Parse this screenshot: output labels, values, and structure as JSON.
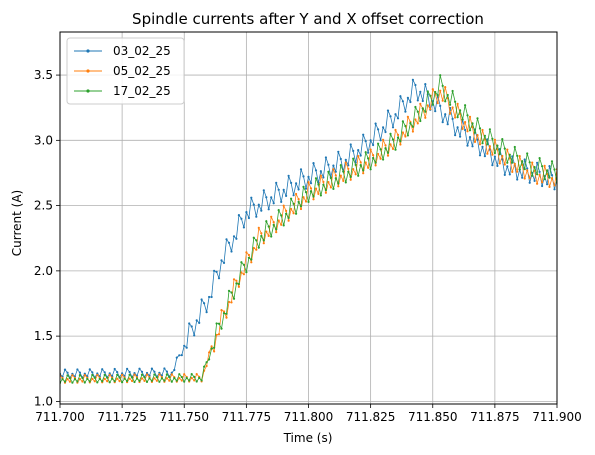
{
  "chart_data": {
    "type": "line",
    "title": "Spindle currents after Y and X offset correction",
    "xlabel": "Time (s)",
    "ylabel": "Current (A)",
    "xlim": [
      711.7,
      711.9
    ],
    "ylim": [
      0.98,
      3.83
    ],
    "x_ticks": [
      "711.700",
      "711.725",
      "711.750",
      "711.775",
      "711.800",
      "711.825",
      "711.850",
      "711.875",
      "711.900"
    ],
    "y_ticks": [
      "1.0",
      "1.5",
      "2.0",
      "2.5",
      "3.0",
      "3.5"
    ],
    "grid": true,
    "legend": "top-left",
    "sample_interval": 0.001,
    "series": [
      {
        "name": "03_02_25",
        "color": "#1f77b4",
        "knots": [
          [
            711.7,
            1.21
          ],
          [
            711.745,
            1.22
          ],
          [
            711.753,
            1.55
          ],
          [
            711.76,
            1.8
          ],
          [
            711.765,
            2.08
          ],
          [
            711.775,
            2.45
          ],
          [
            711.79,
            2.62
          ],
          [
            711.8,
            2.72
          ],
          [
            711.815,
            2.85
          ],
          [
            711.825,
            3.0
          ],
          [
            711.835,
            3.2
          ],
          [
            711.843,
            3.4
          ],
          [
            711.85,
            3.3
          ],
          [
            711.86,
            3.1
          ],
          [
            711.87,
            2.95
          ],
          [
            711.88,
            2.8
          ],
          [
            711.9,
            2.7
          ]
        ],
        "ripple": 0.1
      },
      {
        "name": "05_02_25",
        "color": "#ff7f0e",
        "knots": [
          [
            711.7,
            1.17
          ],
          [
            711.757,
            1.18
          ],
          [
            711.765,
            1.62
          ],
          [
            711.772,
            1.95
          ],
          [
            711.78,
            2.25
          ],
          [
            711.79,
            2.42
          ],
          [
            711.8,
            2.6
          ],
          [
            711.815,
            2.75
          ],
          [
            711.825,
            2.85
          ],
          [
            711.835,
            3.0
          ],
          [
            711.845,
            3.2
          ],
          [
            711.853,
            3.38
          ],
          [
            711.86,
            3.2
          ],
          [
            711.87,
            3.0
          ],
          [
            711.88,
            2.85
          ],
          [
            711.89,
            2.75
          ],
          [
            711.9,
            2.7
          ]
        ],
        "ripple": 0.09
      },
      {
        "name": "17_02_25",
        "color": "#2ca02c",
        "knots": [
          [
            711.7,
            1.17
          ],
          [
            711.757,
            1.18
          ],
          [
            711.765,
            1.63
          ],
          [
            711.772,
            1.95
          ],
          [
            711.78,
            2.25
          ],
          [
            711.79,
            2.42
          ],
          [
            711.8,
            2.6
          ],
          [
            711.815,
            2.75
          ],
          [
            711.825,
            2.85
          ],
          [
            711.835,
            3.0
          ],
          [
            711.845,
            3.22
          ],
          [
            711.853,
            3.42
          ],
          [
            711.86,
            3.25
          ],
          [
            711.87,
            3.05
          ],
          [
            711.88,
            2.9
          ],
          [
            711.89,
            2.8
          ],
          [
            711.9,
            2.75
          ]
        ],
        "ripple": 0.09
      }
    ]
  }
}
